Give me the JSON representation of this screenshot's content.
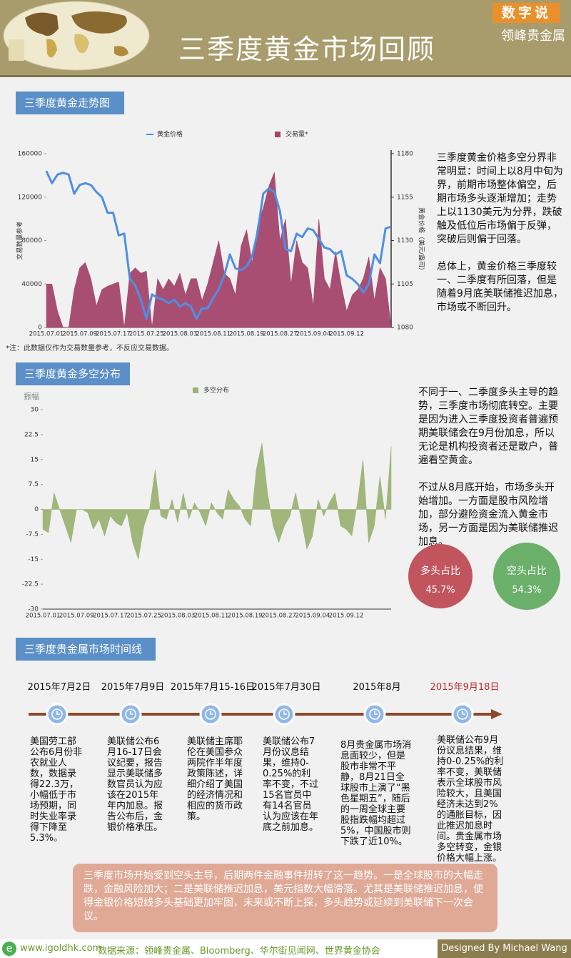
{
  "header": {
    "title": "三季度黄金市场回顾",
    "badge": "数字说",
    "brand": "领峰贵金属"
  },
  "chart_data": [
    {
      "type": "combo",
      "title": "三季度黄金走势图",
      "categories": [
        "2015.07.01",
        null,
        null,
        null,
        null,
        null,
        "2015.07.09",
        null,
        null,
        null,
        null,
        null,
        "2015.07.17",
        null,
        null,
        null,
        null,
        null,
        "2015.07.25",
        null,
        null,
        null,
        null,
        null,
        "2015.08.03",
        null,
        null,
        null,
        null,
        null,
        "2015.08.11",
        null,
        null,
        null,
        null,
        null,
        "2015.08.19",
        null,
        null,
        null,
        null,
        null,
        "2015.08.27",
        null,
        null,
        null,
        null,
        null,
        "2015.09.04",
        null,
        null,
        null,
        null,
        null,
        "2015.09.12",
        null,
        null,
        null,
        null,
        null,
        null,
        null,
        null
      ],
      "series": [
        {
          "name": "黄金价格",
          "type": "line",
          "color": "#4f8fe0",
          "axis": "y2",
          "values": [
            1170,
            1163,
            1168,
            1169,
            1168,
            1157,
            1162,
            1163,
            1162,
            1158,
            1155,
            1146,
            1146,
            1133,
            1134,
            1108,
            1104,
            1096,
            1085,
            1099,
            1097,
            1096,
            1094,
            1096,
            1092,
            1094,
            1092,
            1085,
            1091,
            1091,
            1097,
            1102,
            1110,
            1122,
            1114,
            1113,
            1115,
            1121,
            1135,
            1157,
            1160,
            1158,
            1147,
            1125,
            1124,
            1134,
            1132,
            1137,
            1136,
            1131,
            1126,
            1125,
            1122,
            1124,
            1110,
            1108,
            1105,
            1100,
            1105,
            1122,
            1117,
            1137,
            1138
          ]
        },
        {
          "name": "交易量*",
          "type": "area",
          "color": "#a3456b",
          "values": [
            40000,
            40000,
            15000,
            0,
            0,
            35000,
            55000,
            60000,
            45000,
            20000,
            35000,
            38000,
            40000,
            42000,
            0,
            50000,
            55000,
            50000,
            52000,
            0,
            45000,
            35000,
            45000,
            38000,
            50000,
            30000,
            45000,
            45000,
            25000,
            40000,
            60000,
            80000,
            50000,
            45000,
            30000,
            75000,
            90000,
            60000,
            95000,
            110000,
            130000,
            143000,
            80000,
            100000,
            40000,
            80000,
            60000,
            55000,
            20000,
            100000,
            45000,
            35000,
            70000,
            40000,
            15000,
            30000,
            35000,
            45000,
            65000,
            25000,
            55000,
            45000,
            0
          ]
        }
      ],
      "ylim": [
        0,
        160000
      ],
      "yticks": [
        0,
        40000,
        80000,
        120000,
        160000
      ],
      "y2lim": [
        1080,
        1180
      ],
      "y2ticks": [
        1080,
        1105,
        1130,
        1155,
        1180
      ],
      "ylabel": "交易数量参考",
      "y2label": "黄金价格（美元/盎司）",
      "note": "*注：此数据仅作为交易数量参考，不反应交易数据。"
    },
    {
      "type": "area",
      "title": "三季度黄金多空分布",
      "categories": [
        "2015.07.01",
        null,
        null,
        null,
        null,
        null,
        "2015.07.09",
        null,
        null,
        null,
        null,
        null,
        "2015.07.17",
        null,
        null,
        null,
        null,
        null,
        "2015.07.25",
        null,
        null,
        null,
        null,
        null,
        "2015.08.03",
        null,
        null,
        null,
        null,
        null,
        "2015.08.11",
        null,
        null,
        null,
        null,
        null,
        "2015.08.19",
        null,
        null,
        null,
        null,
        null,
        "2015.08.27",
        null,
        null,
        null,
        null,
        null,
        "2015.09.04",
        null,
        null,
        null,
        null,
        null,
        "2015.09.12",
        null,
        null,
        null,
        null,
        null,
        null,
        null,
        null
      ],
      "series": [
        {
          "name": "多空分布",
          "color": "#9cb274",
          "values": [
            -6,
            -7,
            5,
            0,
            -5,
            -10,
            0,
            0,
            -1,
            -6,
            -3,
            -8,
            -2,
            -4,
            -5,
            -1,
            -10,
            -15,
            -5,
            0,
            12,
            -2,
            -3,
            3,
            -4,
            5,
            -3,
            2,
            -1,
            -5,
            2,
            -1,
            -3,
            6,
            3,
            1,
            -3,
            -5,
            12,
            20,
            5,
            -5,
            -10,
            -5,
            -2,
            5,
            -3,
            -12,
            -8,
            3,
            -2,
            2,
            5,
            -5,
            -6,
            -8,
            2,
            15,
            -10,
            -5,
            10,
            -3,
            19
          ]
        }
      ],
      "ylim": [
        -30,
        30
      ],
      "yticks": [
        -30,
        -22.5,
        -15,
        -7.5,
        0,
        7.5,
        15,
        22.5,
        30
      ],
      "ylabel": "振幅"
    }
  ],
  "commentary": {
    "trend": [
      "三季度黄金价格多空分界非常明显：时间上以8月中旬为界，前期市场整体偏空，后期市场多头逐渐增加；走势上以1130美元为分界，跌破触及低位后市场偏于反弹，突破后则偏于回落。",
      "总体上，黄金价格三季度较一、二季度有所回落，但是随着9月底美联储推迟加息，市场或不断回升。"
    ],
    "distribution": [
      "不同于一、二季度多头主导的趋势，三季度市场彻底转空。主要是因为进入三季度投资者普遍预期美联储会在9月份加息，所以无论是机构投资者还是散户，普遍看空黄金。",
      "不过从8月底开始，市场多头开始增加。一方面是股市风险增加，部分避险资金流入黄金市场，另一方面是因为美联储推迟加息。"
    ]
  },
  "ratio": [
    {
      "label": "多头占比",
      "value": "45.7%"
    },
    {
      "label": "空头占比",
      "value": "54.3%"
    }
  ],
  "timeline": {
    "title": "三季度贵金属市场时间线",
    "events": [
      {
        "date": "2015年7月2日",
        "text": "美国劳工部公布6月份非农就业人数，数据录得22.3万，小幅低于市场预期，同时失业率录得下降至5.3%。"
      },
      {
        "date": "2015年7月9日",
        "text": "美联储公布6月16-17日会议纪要，报告显示美联储多数官员认为应该在2015年年内加息。报告公布后，金银价格承压。"
      },
      {
        "date": "2015年7月15-16日",
        "text": "美联储主席耶伦在美国参众两院作半年度政策陈述，详细介绍了美国的经济情况和相应的货币政策。"
      },
      {
        "date": "2015年7月30日",
        "text": "美联储公布7月份议息结果，维持0-0.25%的利率不变，不过15名官员中有14名官员认为应该在年底之前加息。"
      },
      {
        "date": "2015年8月",
        "text": "8月贵金属市场消息面较少，但是股市非常不平静，8月21日全球股市上演了“黑色星期五”，随后的一周全球主要股指跌幅均超过5%，中国股市则下跌了近10%。"
      },
      {
        "date": "2015年9月18日",
        "text": "美联储公布9月份议息结果，维持0-0.25%的利率不变，美联储表示全球股市风险较大，且美国经济未达到2%的通胀目标，因此推迟加息时间。贵金属市场多空转变，金银价格大幅上涨。"
      }
    ]
  },
  "summary": "三季度市场开始受到空头主导，后期两件金融事件扭转了这一趋势。一是全球股市的大幅走跌，金融风险加大；二是美联储推迟加息，美元指数大幅滑落。尤其是美联储推迟加息，使得金银价格短线多头基础更加牢固，未来或不断上探，多头趋势或延续到美联储下一次会议。",
  "footer": {
    "website": "www.igoldhk.com",
    "source": "数据来源：领峰贵金属、Bloomberg、华尔街见闻网、世界黄金协会",
    "credit": "Designed By Michael Wang"
  }
}
